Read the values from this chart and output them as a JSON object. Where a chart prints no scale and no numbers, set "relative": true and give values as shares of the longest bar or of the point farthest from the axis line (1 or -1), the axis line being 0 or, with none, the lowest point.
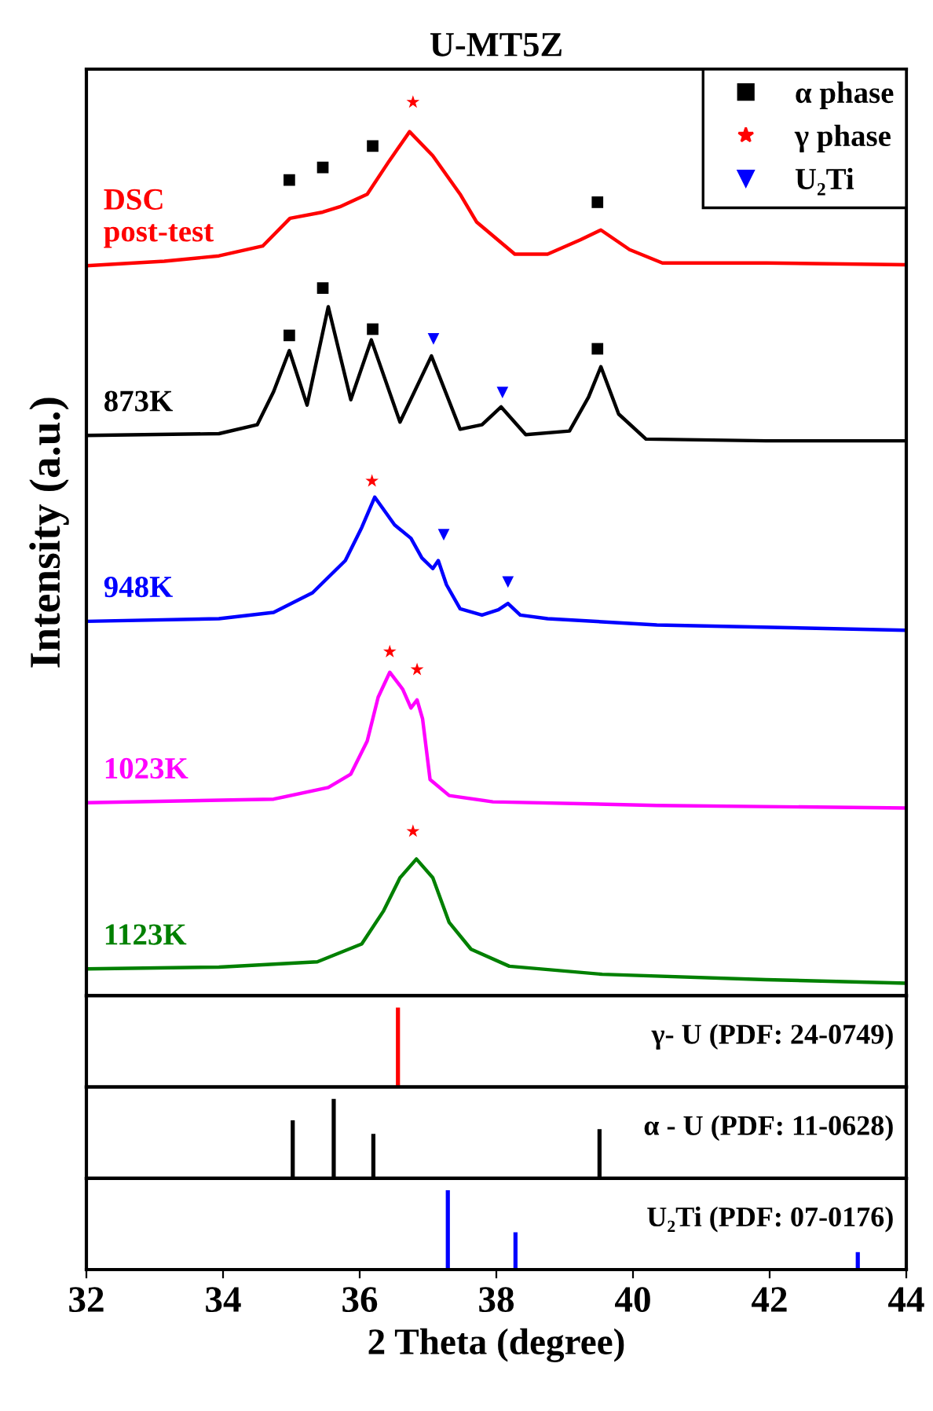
{
  "chart_data": [
    {
      "type": "line",
      "title": "U-MT5Z",
      "ylabel": "Intensity (a.u.)",
      "relative": true,
      "xlim": [
        32,
        44
      ],
      "tick_labels": false,
      "legend": "top right",
      "series": [
        {
          "type": "line",
          "name": "DSC\npost-test",
          "color": "#ff0000",
          "x": [
            32.0,
            33.14,
            33.94,
            34.58,
            34.98,
            35.46,
            35.71,
            36.11,
            36.43,
            36.73,
            37.07,
            37.47,
            37.71,
            38.27,
            38.75,
            39.23,
            39.53,
            39.95,
            40.43,
            41.95,
            44.0
          ],
          "values": [
            0.817,
            0.822,
            0.828,
            0.839,
            0.87,
            0.877,
            0.883,
            0.897,
            0.934,
            0.967,
            0.94,
            0.897,
            0.866,
            0.83,
            0.83,
            0.846,
            0.857,
            0.835,
            0.82,
            0.82,
            0.818
          ]
        },
        {
          "type": "line",
          "name": "873K",
          "color": "#000000",
          "x": [
            32.0,
            33.94,
            34.5,
            34.74,
            34.97,
            35.23,
            35.54,
            35.87,
            36.17,
            36.59,
            37.05,
            37.47,
            37.79,
            38.07,
            38.43,
            39.07,
            39.35,
            39.53,
            39.79,
            40.19,
            41.95,
            44.0
          ],
          "values": [
            0.627,
            0.629,
            0.639,
            0.676,
            0.722,
            0.661,
            0.771,
            0.667,
            0.734,
            0.642,
            0.716,
            0.634,
            0.639,
            0.659,
            0.628,
            0.632,
            0.67,
            0.704,
            0.651,
            0.623,
            0.621,
            0.621
          ]
        },
        {
          "type": "line",
          "name": "948K",
          "color": "#0000ff",
          "x": [
            32.0,
            33.94,
            34.74,
            35.31,
            35.79,
            36.03,
            36.22,
            36.51,
            36.75,
            36.91,
            37.07,
            37.15,
            37.27,
            37.47,
            37.79,
            38.03,
            38.17,
            38.35,
            38.75,
            40.35,
            44.0
          ],
          "values": [
            0.419,
            0.422,
            0.429,
            0.451,
            0.487,
            0.524,
            0.558,
            0.527,
            0.512,
            0.49,
            0.478,
            0.487,
            0.46,
            0.433,
            0.426,
            0.432,
            0.439,
            0.426,
            0.422,
            0.415,
            0.409
          ]
        },
        {
          "type": "line",
          "name": "1023K",
          "color": "#ff00ff",
          "x": [
            32.0,
            34.74,
            35.54,
            35.87,
            36.11,
            36.27,
            36.44,
            36.63,
            36.75,
            36.84,
            36.92,
            37.03,
            37.31,
            37.95,
            40.35,
            44.0
          ],
          "values": [
            0.216,
            0.22,
            0.233,
            0.248,
            0.285,
            0.334,
            0.362,
            0.343,
            0.322,
            0.331,
            0.31,
            0.242,
            0.224,
            0.217,
            0.213,
            0.21
          ]
        },
        {
          "type": "line",
          "name": "1123K",
          "color": "#008000",
          "x": [
            32.0,
            33.94,
            35.38,
            36.03,
            36.35,
            36.59,
            36.83,
            37.07,
            37.31,
            37.63,
            38.19,
            39.55,
            41.95,
            44.0
          ],
          "values": [
            0.03,
            0.032,
            0.038,
            0.058,
            0.095,
            0.132,
            0.153,
            0.132,
            0.082,
            0.052,
            0.033,
            0.024,
            0.018,
            0.014
          ]
        },
        {
          "type": "scatter",
          "name": "α phase",
          "color": "#000000",
          "marker": "square",
          "x": [
            34.97,
            35.46,
            36.19,
            39.48,
            34.97,
            35.46,
            36.19,
            39.48
          ],
          "values": [
            0.913,
            0.927,
            0.951,
            0.888,
            0.739,
            0.792,
            0.746,
            0.724
          ]
        },
        {
          "type": "scatter",
          "name": "γ phase",
          "color": "#ff0000",
          "marker": "star",
          "x": [
            36.78,
            36.18,
            36.44,
            36.84,
            36.78
          ],
          "values": [
            1.0,
            0.576,
            0.385,
            0.365,
            0.184
          ]
        },
        {
          "type": "scatter",
          "name": "U₂Ti",
          "color": "#0000ff",
          "marker": "triangle",
          "x": [
            37.08,
            38.09,
            37.23,
            38.17
          ],
          "values": [
            0.735,
            0.675,
            0.516,
            0.463
          ]
        }
      ]
    },
    {
      "type": "bar",
      "relative": true,
      "xlim": [
        32,
        44
      ],
      "tick_labels": false,
      "color": "#ff0000",
      "x": [
        36.56
      ],
      "values": [
        1
      ],
      "annotations": [
        "γ- U (PDF: 24-0749)"
      ]
    },
    {
      "type": "bar",
      "relative": true,
      "xlim": [
        32,
        44
      ],
      "tick_labels": false,
      "color": "#000000",
      "x": [
        35.02,
        35.62,
        36.2,
        39.51
      ],
      "values": [
        0.73,
        1,
        0.56,
        0.62
      ],
      "annotations": [
        "α - U (PDF: 11-0628)"
      ]
    },
    {
      "type": "bar",
      "relative": true,
      "xlim": [
        32,
        44
      ],
      "tick_labels": "x",
      "xlabel": "2 Theta (degree)",
      "xticks": [
        32,
        34,
        36,
        38,
        40,
        42,
        44
      ],
      "color": "#0000ff",
      "x": [
        37.29,
        38.28,
        43.29
      ],
      "values": [
        1,
        0.47,
        0.22
      ],
      "annotations": [
        "U₂Ti (PDF: 07-0176)"
      ]
    }
  ]
}
